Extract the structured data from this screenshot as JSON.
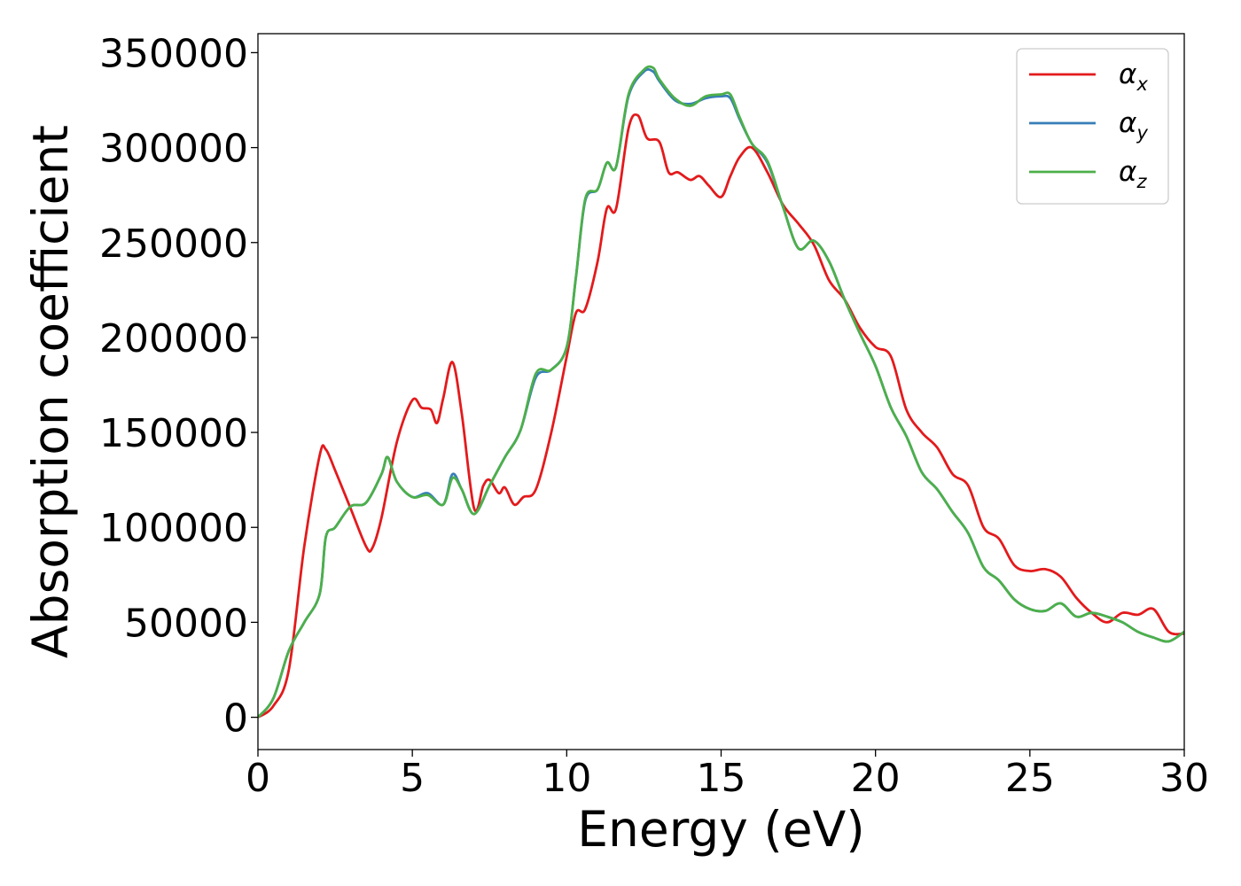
{
  "chart_data": {
    "type": "line",
    "title": "",
    "xlabel": "Energy (eV)",
    "ylabel": "Absorption coefficient",
    "xlim": [
      0,
      30
    ],
    "ylim": [
      -17000,
      360000
    ],
    "xticks": [
      0,
      5,
      10,
      15,
      20,
      25,
      30
    ],
    "xtick_labels": [
      "0",
      "5",
      "10",
      "15",
      "20",
      "25",
      "30"
    ],
    "yticks": [
      0,
      50000,
      100000,
      150000,
      200000,
      250000,
      300000,
      350000
    ],
    "ytick_labels": [
      "0",
      "50000",
      "100000",
      "150000",
      "200000",
      "250000",
      "300000",
      "350000"
    ],
    "grid": false,
    "legend_placement": "top-right",
    "series": [
      {
        "name": "α_x",
        "legend_base": "α",
        "legend_sub": "x",
        "color": "#e31a1c",
        "x": [
          0,
          0.5,
          1,
          1.5,
          2,
          2.2,
          2.5,
          3,
          3.5,
          3.7,
          4,
          4.5,
          5,
          5.3,
          5.6,
          5.8,
          6,
          6.3,
          6.6,
          7,
          7.3,
          7.5,
          7.8,
          8,
          8.3,
          8.6,
          9,
          9.5,
          10,
          10.3,
          10.6,
          11,
          11.3,
          11.6,
          12,
          12.3,
          12.6,
          13,
          13.3,
          13.6,
          14,
          14.3,
          14.6,
          15,
          15.3,
          15.6,
          16,
          16.5,
          17,
          17.5,
          18,
          18.5,
          19,
          19.5,
          20,
          20.5,
          21,
          21.5,
          22,
          22.5,
          23,
          23.5,
          24,
          24.5,
          25,
          25.5,
          26,
          26.5,
          27,
          27.5,
          28,
          28.5,
          29,
          29.5,
          30
        ],
        "y": [
          0,
          6000,
          25000,
          90000,
          138000,
          141000,
          130000,
          110000,
          90000,
          89000,
          105000,
          145000,
          167000,
          163000,
          162000,
          155000,
          168000,
          187000,
          160000,
          110000,
          122000,
          125000,
          118000,
          121000,
          112000,
          116000,
          120000,
          150000,
          190000,
          213000,
          215000,
          240000,
          268000,
          268000,
          310000,
          317000,
          305000,
          303000,
          287000,
          287000,
          283000,
          285000,
          280000,
          274000,
          285000,
          295000,
          300000,
          287000,
          270000,
          260000,
          249000,
          230000,
          220000,
          205000,
          195000,
          190000,
          162000,
          150000,
          142000,
          128000,
          122000,
          100000,
          94000,
          80000,
          77000,
          78000,
          74000,
          63000,
          55000,
          50000,
          55000,
          54000,
          57000,
          45000,
          44000
        ]
      },
      {
        "name": "α_y",
        "legend_base": "α",
        "legend_sub": "y",
        "color": "#377eb8",
        "x": [
          0,
          0.5,
          1,
          1.5,
          2,
          2.2,
          2.5,
          3,
          3.5,
          4,
          4.2,
          4.5,
          5,
          5.5,
          6,
          6.3,
          6.6,
          7,
          7.5,
          8,
          8.5,
          9,
          9.5,
          10,
          10.3,
          10.6,
          11,
          11.3,
          11.6,
          12,
          12.5,
          12.8,
          13,
          13.5,
          14,
          14.5,
          15,
          15.3,
          15.6,
          16,
          16.5,
          17,
          17.5,
          18,
          18.5,
          19,
          19.5,
          20,
          20.5,
          21,
          21.5,
          22,
          22.5,
          23,
          23.5,
          24,
          24.5,
          25,
          25.5,
          26,
          26.5,
          27,
          27.5,
          28,
          28.5,
          29,
          29.5,
          30
        ],
        "y": [
          0,
          10000,
          35000,
          50000,
          65000,
          95000,
          100000,
          111000,
          113000,
          128000,
          137000,
          124000,
          116000,
          118000,
          112000,
          128000,
          120000,
          107000,
          122000,
          137000,
          151000,
          179000,
          183000,
          195000,
          232000,
          272000,
          278000,
          292000,
          290000,
          327000,
          340000,
          340000,
          335000,
          325000,
          323000,
          326000,
          327000,
          326000,
          315000,
          302000,
          292000,
          269000,
          247000,
          251000,
          240000,
          220000,
          202000,
          185000,
          163000,
          148000,
          129000,
          120000,
          108000,
          97000,
          79000,
          72000,
          62000,
          57000,
          56000,
          60000,
          53000,
          55000,
          53000,
          50000,
          45000,
          42000,
          40000,
          45000
        ]
      },
      {
        "name": "α_z",
        "legend_base": "α",
        "legend_sub": "z",
        "color": "#4daf4a",
        "x": [
          0,
          0.5,
          1,
          1.5,
          2,
          2.2,
          2.5,
          3,
          3.5,
          4,
          4.2,
          4.5,
          5,
          5.5,
          6,
          6.3,
          6.6,
          7,
          7.5,
          8,
          8.5,
          9,
          9.5,
          10,
          10.3,
          10.6,
          11,
          11.3,
          11.6,
          12,
          12.5,
          12.8,
          13,
          13.5,
          14,
          14.5,
          15,
          15.3,
          15.6,
          16,
          16.5,
          17,
          17.5,
          18,
          18.5,
          19,
          19.5,
          20,
          20.5,
          21,
          21.5,
          22,
          22.5,
          23,
          23.5,
          24,
          24.5,
          25,
          25.5,
          26,
          26.5,
          27,
          27.5,
          28,
          28.5,
          29,
          29.5,
          30
        ],
        "y": [
          0,
          10000,
          35000,
          50000,
          65000,
          95000,
          100000,
          111000,
          113000,
          128000,
          137000,
          124000,
          116000,
          117000,
          112000,
          126000,
          120000,
          107000,
          122000,
          137000,
          151000,
          181000,
          183000,
          195000,
          232000,
          273000,
          278000,
          292000,
          290000,
          328000,
          341000,
          342000,
          336000,
          326000,
          322000,
          327000,
          328000,
          328000,
          316000,
          302000,
          293000,
          269000,
          247000,
          251000,
          240000,
          220000,
          202000,
          185000,
          163000,
          148000,
          129000,
          120000,
          108000,
          97000,
          79000,
          72000,
          62000,
          57000,
          56000,
          60000,
          53000,
          55000,
          53000,
          50000,
          45000,
          42000,
          40000,
          45000
        ]
      }
    ]
  }
}
